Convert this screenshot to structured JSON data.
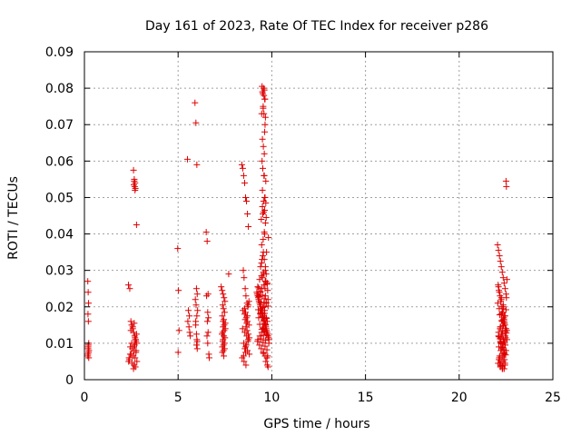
{
  "chart_data": {
    "type": "scatter",
    "title": "Day 161 of 2023, Rate Of TEC Index for receiver p286",
    "xlabel": "GPS time / hours",
    "ylabel": "ROTI / TECUs",
    "xlim": [
      0,
      25
    ],
    "ylim": [
      0,
      0.09
    ],
    "x_ticks": [
      0,
      5,
      10,
      15,
      20,
      25
    ],
    "x_tick_labels": [
      "0",
      "5",
      "10",
      "15",
      "20",
      "25"
    ],
    "y_ticks": [
      0,
      0.01,
      0.02,
      0.03,
      0.04,
      0.05,
      0.06,
      0.07,
      0.08,
      0.09
    ],
    "y_tick_labels": [
      "0",
      "0.01",
      "0.02",
      "0.03",
      "0.04",
      "0.05",
      "0.06",
      "0.07",
      "0.08",
      "0.09"
    ],
    "grid": true,
    "marker": "+",
    "marker_color": "#dd0000",
    "series": [
      {
        "x": [
          0.18,
          0.2,
          0.22,
          0.19,
          0.21,
          0.23,
          0.2,
          0.24,
          0.18,
          0.22,
          0.2,
          0.21,
          0.19,
          0.23,
          2.35,
          2.42,
          2.48,
          2.52,
          2.58,
          2.62,
          2.68,
          2.72,
          2.78,
          2.45,
          2.55,
          2.65,
          2.75,
          2.5,
          2.6,
          2.7,
          2.4,
          2.8,
          2.55,
          2.65,
          2.62,
          2.72,
          2.68,
          2.75,
          2.7,
          2.78,
          2.48,
          2.58,
          2.66,
          2.74,
          2.52,
          2.64,
          2.76,
          2.44,
          2.38,
          2.36,
          2.62,
          2.66,
          2.7,
          2.64,
          2.68,
          2.72,
          2.66,
          2.7,
          2.78,
          4.98,
          5.02,
          5.05,
          5.0,
          5.5,
          5.55,
          5.6,
          5.52,
          5.58,
          5.62,
          5.65,
          5.9,
          5.95,
          6.0,
          5.98,
          6.02,
          5.92,
          5.96,
          6.04,
          6.0,
          5.94,
          5.98,
          6.02,
          5.98,
          6.02,
          6.0,
          5.94,
          6.5,
          6.55,
          6.6,
          6.52,
          6.58,
          6.62,
          6.56,
          6.6,
          6.54,
          6.58,
          6.64,
          6.66,
          7.3,
          7.35,
          7.4,
          7.45,
          7.5,
          7.38,
          7.42,
          7.48,
          7.36,
          7.44,
          7.52,
          7.4,
          7.46,
          7.34,
          7.5,
          7.38,
          7.42,
          7.48,
          7.36,
          7.44,
          7.4,
          7.46,
          7.52,
          7.38,
          7.44,
          7.4,
          7.48,
          7.36,
          7.42,
          7.7,
          8.4,
          8.45,
          8.5,
          8.55,
          8.6,
          8.65,
          8.7,
          8.75,
          8.48,
          8.52,
          8.58,
          8.62,
          8.68,
          8.72,
          8.46,
          8.54,
          8.64,
          8.7,
          8.78,
          8.44,
          8.56,
          8.66,
          8.74,
          8.5,
          8.6,
          8.7,
          8.8,
          8.42,
          8.52,
          8.62,
          8.55,
          8.6,
          8.7,
          8.58,
          8.66,
          8.62,
          8.68,
          8.75,
          8.8,
          8.72,
          8.64,
          8.56,
          8.6,
          8.5,
          8.74,
          8.78,
          9.2,
          9.25,
          9.3,
          9.35,
          9.4,
          9.45,
          9.5,
          9.55,
          9.6,
          9.65,
          9.7,
          9.75,
          9.8,
          9.85,
          9.22,
          9.28,
          9.32,
          9.38,
          9.42,
          9.48,
          9.52,
          9.58,
          9.62,
          9.68,
          9.72,
          9.78,
          9.82,
          9.24,
          9.34,
          9.44,
          9.54,
          9.64,
          9.74,
          9.84,
          9.26,
          9.36,
          9.46,
          9.56,
          9.66,
          9.76,
          9.3,
          9.4,
          9.5,
          9.6,
          9.7,
          9.8,
          9.28,
          9.38,
          9.48,
          9.58,
          9.68,
          9.78,
          9.32,
          9.42,
          9.52,
          9.62,
          9.72,
          9.36,
          9.46,
          9.56,
          9.66,
          9.76,
          9.25,
          9.35,
          9.45,
          9.55,
          9.65,
          9.75,
          9.3,
          9.4,
          9.5,
          9.6,
          9.7,
          9.8,
          9.28,
          9.38,
          9.48,
          9.58,
          9.68,
          9.52,
          9.62,
          9.72,
          9.44,
          9.54,
          9.64,
          9.74,
          9.56,
          9.66,
          9.4,
          9.45,
          9.48,
          9.52,
          9.55,
          9.58,
          9.5,
          9.46,
          9.54,
          9.6,
          9.44,
          9.56,
          9.62,
          9.5,
          9.58,
          9.52,
          9.48,
          9.6,
          9.55,
          9.5,
          9.64,
          9.46,
          9.54,
          9.62,
          9.58,
          9.5,
          9.56,
          9.48,
          9.6,
          9.52,
          9.64,
          9.54,
          9.58,
          9.66,
          9.62,
          9.6,
          9.68,
          9.56,
          9.5,
          9.52,
          9.62,
          9.66,
          9.7,
          9.62,
          9.68,
          9.64,
          9.72,
          9.6,
          9.66,
          9.7,
          9.68,
          9.64,
          9.66,
          9.58,
          9.62,
          9.7,
          9.66,
          9.64,
          9.68,
          9.76,
          9.8,
          9.78,
          9.82,
          22.05,
          22.1,
          22.15,
          22.2,
          22.25,
          22.3,
          22.35,
          22.4,
          22.45,
          22.5,
          22.55,
          22.08,
          22.12,
          22.18,
          22.22,
          22.28,
          22.32,
          22.38,
          22.42,
          22.48,
          22.52,
          22.06,
          22.14,
          22.24,
          22.34,
          22.44,
          22.54,
          22.1,
          22.2,
          22.3,
          22.4,
          22.5,
          22.16,
          22.26,
          22.36,
          22.46,
          22.12,
          22.22,
          22.32,
          22.42,
          22.52,
          22.18,
          22.28,
          22.38,
          22.48,
          22.14,
          22.24,
          22.34,
          22.44,
          22.2,
          22.3,
          22.4,
          22.5,
          22.26,
          22.36,
          22.46,
          22.22,
          22.32,
          22.42,
          22.16,
          22.28,
          22.38,
          22.48,
          22.1,
          22.2,
          22.3,
          22.4,
          22.25,
          22.35,
          22.3,
          22.4,
          22.2,
          22.32,
          22.42,
          22.28,
          22.38,
          22.24,
          22.34,
          22.44,
          22.3,
          22.36,
          22.26,
          22.4,
          22.18,
          22.46,
          22.22,
          22.5,
          22.16,
          22.12,
          22.08,
          22.2,
          22.32,
          22.1,
          22.15,
          22.25,
          22.35,
          22.45,
          22.4,
          22.3,
          22.2,
          22.55,
          22.12,
          22.5,
          22.52
        ],
        "y": [
          0.027,
          0.024,
          0.021,
          0.018,
          0.016,
          0.01,
          0.009,
          0.008,
          0.0065,
          0.0075,
          0.0085,
          0.0095,
          0.007,
          0.006,
          0.026,
          0.025,
          0.016,
          0.015,
          0.014,
          0.013,
          0.012,
          0.011,
          0.01,
          0.009,
          0.0085,
          0.008,
          0.0075,
          0.007,
          0.0065,
          0.006,
          0.0055,
          0.005,
          0.0045,
          0.004,
          0.003,
          0.0035,
          0.0095,
          0.0105,
          0.0115,
          0.0125,
          0.0135,
          0.0145,
          0.0155,
          0.011,
          0.01,
          0.009,
          0.008,
          0.007,
          0.006,
          0.005,
          0.0575,
          0.055,
          0.054,
          0.0535,
          0.053,
          0.0525,
          0.0545,
          0.052,
          0.0425,
          0.036,
          0.0245,
          0.0135,
          0.0075,
          0.0605,
          0.019,
          0.0175,
          0.016,
          0.0145,
          0.013,
          0.012,
          0.076,
          0.0705,
          0.059,
          0.025,
          0.0235,
          0.022,
          0.0205,
          0.019,
          0.0175,
          0.015,
          0.0125,
          0.0105,
          0.0095,
          0.0085,
          0.011,
          0.016,
          0.0405,
          0.038,
          0.0235,
          0.023,
          0.0185,
          0.017,
          0.016,
          0.013,
          0.012,
          0.01,
          0.007,
          0.006,
          0.0255,
          0.0245,
          0.0235,
          0.0225,
          0.0215,
          0.0205,
          0.0195,
          0.0185,
          0.0175,
          0.0165,
          0.0155,
          0.0145,
          0.0135,
          0.0125,
          0.0115,
          0.0105,
          0.0095,
          0.0085,
          0.0075,
          0.0065,
          0.016,
          0.015,
          0.014,
          0.013,
          0.012,
          0.011,
          0.01,
          0.009,
          0.008,
          0.029,
          0.059,
          0.058,
          0.056,
          0.054,
          0.05,
          0.049,
          0.0455,
          0.042,
          0.03,
          0.028,
          0.025,
          0.023,
          0.021,
          0.02,
          0.019,
          0.018,
          0.017,
          0.016,
          0.015,
          0.014,
          0.013,
          0.012,
          0.011,
          0.01,
          0.009,
          0.008,
          0.007,
          0.006,
          0.005,
          0.004,
          0.0195,
          0.0185,
          0.0175,
          0.0165,
          0.0155,
          0.0145,
          0.0135,
          0.0125,
          0.0115,
          0.0105,
          0.0095,
          0.0085,
          0.0075,
          0.0065,
          0.0205,
          0.0215,
          0.024,
          0.023,
          0.022,
          0.021,
          0.02,
          0.019,
          0.018,
          0.017,
          0.016,
          0.015,
          0.014,
          0.013,
          0.012,
          0.011,
          0.0235,
          0.0225,
          0.0215,
          0.0205,
          0.0195,
          0.0185,
          0.0175,
          0.0165,
          0.0155,
          0.0145,
          0.0135,
          0.0125,
          0.0115,
          0.0105,
          0.0095,
          0.0085,
          0.0075,
          0.0065,
          0.006,
          0.01,
          0.011,
          0.012,
          0.013,
          0.014,
          0.015,
          0.016,
          0.017,
          0.018,
          0.019,
          0.02,
          0.021,
          0.022,
          0.023,
          0.024,
          0.025,
          0.026,
          0.027,
          0.0245,
          0.0228,
          0.0212,
          0.0198,
          0.0182,
          0.0168,
          0.0152,
          0.0138,
          0.0122,
          0.0108,
          0.0265,
          0.0255,
          0.0275,
          0.0285,
          0.0295,
          0.027,
          0.0262,
          0.0252,
          0.0242,
          0.0232,
          0.0222,
          0.0212,
          0.0202,
          0.0192,
          0.0182,
          0.0172,
          0.0162,
          0.0152,
          0.0142,
          0.0132,
          0.0122,
          0.0112,
          0.0102,
          0.0092,
          0.0082,
          0.0072,
          0.03,
          0.031,
          0.032,
          0.033,
          0.034,
          0.035,
          0.029,
          0.028,
          0.037,
          0.0385,
          0.0405,
          0.044,
          0.046,
          0.05,
          0.052,
          0.056,
          0.058,
          0.06,
          0.062,
          0.064,
          0.066,
          0.07,
          0.073,
          0.075,
          0.077,
          0.078,
          0.079,
          0.08,
          0.0805,
          0.0795,
          0.0785,
          0.077,
          0.0745,
          0.073,
          0.072,
          0.068,
          0.056,
          0.0545,
          0.049,
          0.0475,
          0.0455,
          0.04,
          0.043,
          0.0445,
          0.0465,
          0.0485,
          0.05,
          0.035,
          0.033,
          0.031,
          0.029,
          0.027,
          0.025,
          0.023,
          0.021,
          0.019,
          0.017,
          0.015,
          0.013,
          0.005,
          0.004,
          0.0035,
          0.0065,
          0.039,
          0.037,
          0.0355,
          0.034,
          0.0325,
          0.031,
          0.0295,
          0.028,
          0.0265,
          0.025,
          0.0235,
          0.0275,
          0.026,
          0.0245,
          0.023,
          0.0215,
          0.02,
          0.0185,
          0.017,
          0.0155,
          0.014,
          0.0225,
          0.021,
          0.0195,
          0.018,
          0.0165,
          0.015,
          0.0135,
          0.012,
          0.0105,
          0.009,
          0.0075,
          0.0192,
          0.0178,
          0.0162,
          0.0148,
          0.0132,
          0.0118,
          0.0102,
          0.0088,
          0.0072,
          0.0128,
          0.0112,
          0.0098,
          0.0082,
          0.0068,
          0.006,
          0.0055,
          0.005,
          0.0045,
          0.004,
          0.0035,
          0.003,
          0.014,
          0.0125,
          0.011,
          0.0095,
          0.008,
          0.0065,
          0.0055,
          0.0045,
          0.0038,
          0.01,
          0.0115,
          0.013,
          0.0145,
          0.016,
          0.0175,
          0.0225,
          0.0205,
          0.0185,
          0.0165,
          0.0145,
          0.0125,
          0.0105,
          0.0085,
          0.007,
          0.006,
          0.005,
          0.004,
          0.003,
          0.02,
          0.018,
          0.016,
          0.014,
          0.012,
          0.01,
          0.008,
          0.0065,
          0.0055,
          0.0045,
          0.0035,
          0.003,
          0.0255,
          0.024,
          0.022,
          0.0195,
          0.0175,
          0.0155,
          0.0135,
          0.0115,
          0.011,
          0.009,
          0.0545,
          0.053
        ]
      }
    ]
  }
}
